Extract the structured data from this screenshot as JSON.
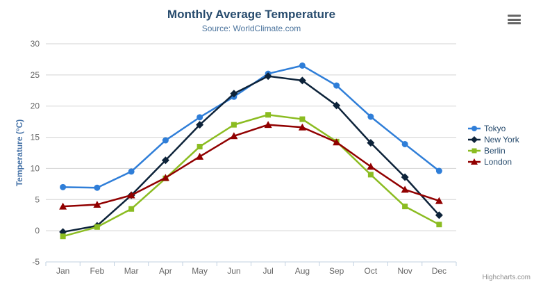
{
  "header": {
    "title": "Monthly Average Temperature",
    "subtitle": "Source: WorldClimate.com"
  },
  "chart_data": {
    "type": "line",
    "title": "Monthly Average Temperature",
    "subtitle": "Source: WorldClimate.com",
    "categories": [
      "Jan",
      "Feb",
      "Mar",
      "Apr",
      "May",
      "Jun",
      "Jul",
      "Aug",
      "Sep",
      "Oct",
      "Nov",
      "Dec"
    ],
    "series": [
      {
        "name": "Tokyo",
        "color": "#2f7ed8",
        "marker": "circle",
        "values": [
          7.0,
          6.9,
          9.5,
          14.5,
          18.2,
          21.5,
          25.2,
          26.5,
          23.3,
          18.3,
          13.9,
          9.6
        ]
      },
      {
        "name": "New York",
        "color": "#0d233a",
        "marker": "diamond",
        "values": [
          -0.2,
          0.8,
          5.7,
          11.3,
          17.0,
          22.0,
          24.8,
          24.1,
          20.1,
          14.1,
          8.6,
          2.5
        ]
      },
      {
        "name": "Berlin",
        "color": "#8bbc21",
        "marker": "square",
        "values": [
          -0.9,
          0.6,
          3.5,
          8.4,
          13.5,
          17.0,
          18.6,
          17.9,
          14.3,
          9.0,
          3.9,
          1.0
        ]
      },
      {
        "name": "London",
        "color": "#910000",
        "marker": "triangle",
        "values": [
          3.9,
          4.2,
          5.7,
          8.5,
          11.9,
          15.2,
          17.0,
          16.6,
          14.2,
          10.3,
          6.6,
          4.8
        ]
      }
    ],
    "xlabel": "",
    "ylabel": "Temperature (°C)",
    "ylim": [
      -5,
      30
    ],
    "ytick_step": 5,
    "grid": true,
    "legend_position": "right"
  },
  "colors": {
    "title": "#274b6d",
    "subtitle": "#4d759e",
    "axis_title": "#4572a7",
    "tick_label": "#666666",
    "grid_line": "#d3d3d3",
    "axis_line": "#c0d0e0",
    "credits": "#909090",
    "menu_icon": "#666666"
  },
  "credits": {
    "label": "Highcharts.com"
  }
}
